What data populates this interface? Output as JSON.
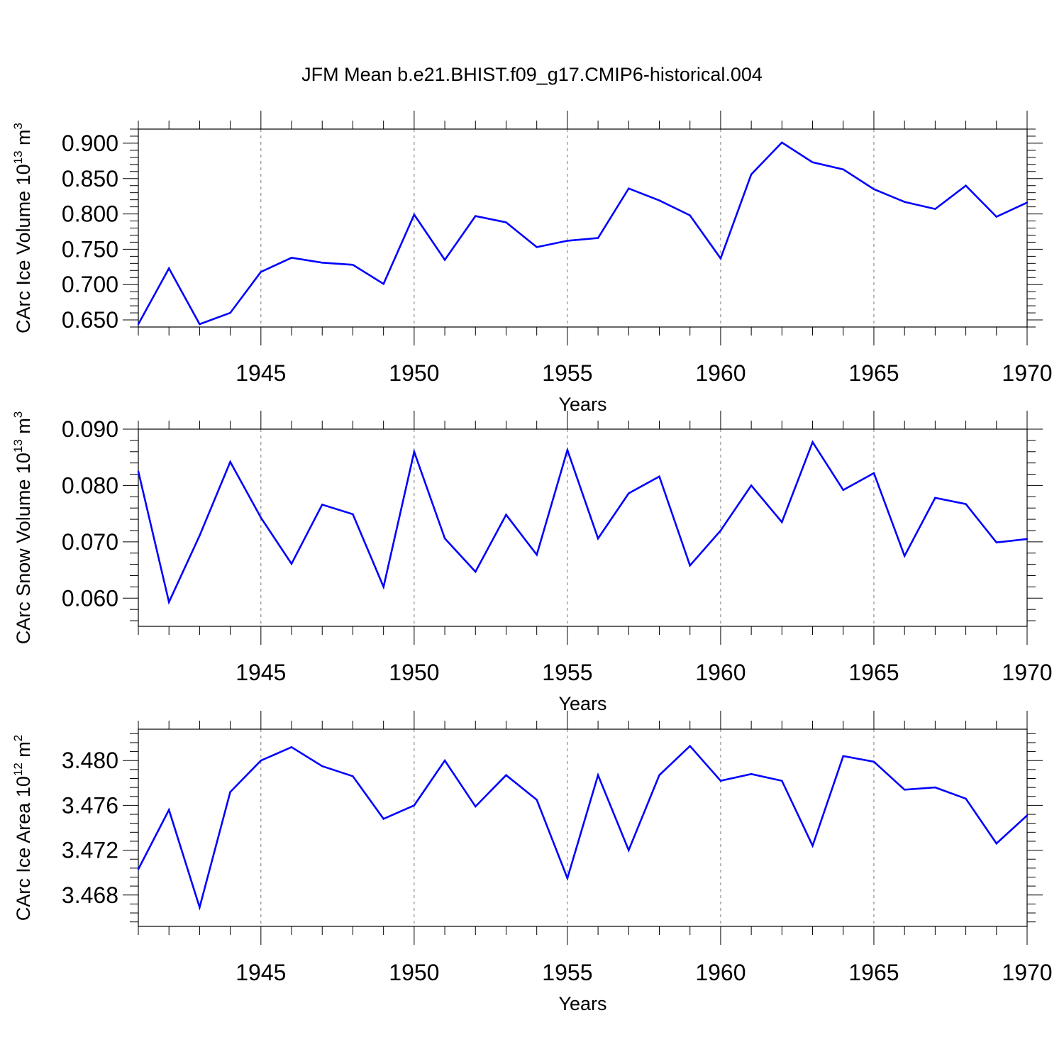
{
  "title": "JFM Mean b.e21.BHIST.f09_g17.CMIP6-historical.004",
  "colors": {
    "line": "#0000ff",
    "axis": "#000000",
    "grid": "#777777"
  },
  "chart_data": [
    {
      "type": "line",
      "xlabel": "Years",
      "ylabel": {
        "text": "CArc Ice Volume 10",
        "exp": "13",
        "unit": " m",
        "unit_exp": "3"
      },
      "xlim": [
        1941,
        1970
      ],
      "ylim": [
        0.64,
        0.92
      ],
      "yticks": [
        0.65,
        0.7,
        0.75,
        0.8,
        0.85,
        0.9
      ],
      "ytick_labels": [
        "0.650",
        "0.700",
        "0.750",
        "0.800",
        "0.850",
        "0.900"
      ],
      "x": [
        1941,
        1942,
        1943,
        1944,
        1945,
        1946,
        1947,
        1948,
        1949,
        1950,
        1951,
        1952,
        1953,
        1954,
        1955,
        1956,
        1957,
        1958,
        1959,
        1960,
        1961,
        1962,
        1963,
        1964,
        1965,
        1966,
        1967,
        1968,
        1969,
        1970
      ],
      "values": [
        0.644,
        0.723,
        0.644,
        0.66,
        0.718,
        0.738,
        0.731,
        0.728,
        0.701,
        0.799,
        0.735,
        0.797,
        0.788,
        0.753,
        0.762,
        0.766,
        0.836,
        0.819,
        0.798,
        0.737,
        0.856,
        0.901,
        0.873,
        0.863,
        0.835,
        0.817,
        0.807,
        0.84,
        0.796,
        0.816
      ]
    },
    {
      "type": "line",
      "xlabel": "Years",
      "ylabel": {
        "text": "CArc Snow Volume 10",
        "exp": "13",
        "unit": " m",
        "unit_exp": "3"
      },
      "xlim": [
        1941,
        1970
      ],
      "ylim": [
        0.055,
        0.09
      ],
      "yticks": [
        0.06,
        0.07,
        0.08,
        0.09
      ],
      "ytick_labels": [
        "0.060",
        "0.070",
        "0.080",
        "0.090"
      ],
      "x": [
        1941,
        1942,
        1943,
        1944,
        1945,
        1946,
        1947,
        1948,
        1949,
        1950,
        1951,
        1952,
        1953,
        1954,
        1955,
        1956,
        1957,
        1958,
        1959,
        1960,
        1961,
        1962,
        1963,
        1964,
        1965,
        1966,
        1967,
        1968,
        1969,
        1970
      ],
      "values": [
        0.0825,
        0.0593,
        0.0711,
        0.0842,
        0.0743,
        0.0661,
        0.0766,
        0.0749,
        0.062,
        0.086,
        0.0706,
        0.0647,
        0.0748,
        0.0677,
        0.0863,
        0.0706,
        0.0786,
        0.0816,
        0.0658,
        0.072,
        0.08,
        0.0735,
        0.0877,
        0.0792,
        0.0822,
        0.0675,
        0.0778,
        0.0767,
        0.0699,
        0.0705
      ]
    },
    {
      "type": "line",
      "xlabel": "Years",
      "ylabel": {
        "text": "CArc Ice Area 10",
        "exp": "12",
        "unit": " m",
        "unit_exp": "2"
      },
      "xlim": [
        1941,
        1970
      ],
      "ylim": [
        3.4652,
        3.4828
      ],
      "yticks": [
        3.468,
        3.472,
        3.476,
        3.48
      ],
      "ytick_labels": [
        "3.468",
        "3.472",
        "3.476",
        "3.480"
      ],
      "x": [
        1941,
        1942,
        1943,
        1944,
        1945,
        1946,
        1947,
        1948,
        1949,
        1950,
        1951,
        1952,
        1953,
        1954,
        1955,
        1956,
        1957,
        1958,
        1959,
        1960,
        1961,
        1962,
        1963,
        1964,
        1965,
        1966,
        1967,
        1968,
        1969,
        1970
      ],
      "values": [
        3.4703,
        3.4756,
        3.4669,
        3.4772,
        3.48,
        3.4812,
        3.4795,
        3.4786,
        3.4748,
        3.476,
        3.48,
        3.4759,
        3.4787,
        3.4765,
        3.4695,
        3.4787,
        3.472,
        3.4787,
        3.4813,
        3.4782,
        3.4788,
        3.4782,
        3.4724,
        3.4804,
        3.4799,
        3.4774,
        3.4776,
        3.4766,
        3.4726,
        3.4751
      ]
    }
  ],
  "xtick_labels": [
    "1945",
    "1950",
    "1955",
    "1960",
    "1965",
    "1970"
  ],
  "xticks": [
    1945,
    1950,
    1955,
    1960,
    1965,
    1970
  ]
}
